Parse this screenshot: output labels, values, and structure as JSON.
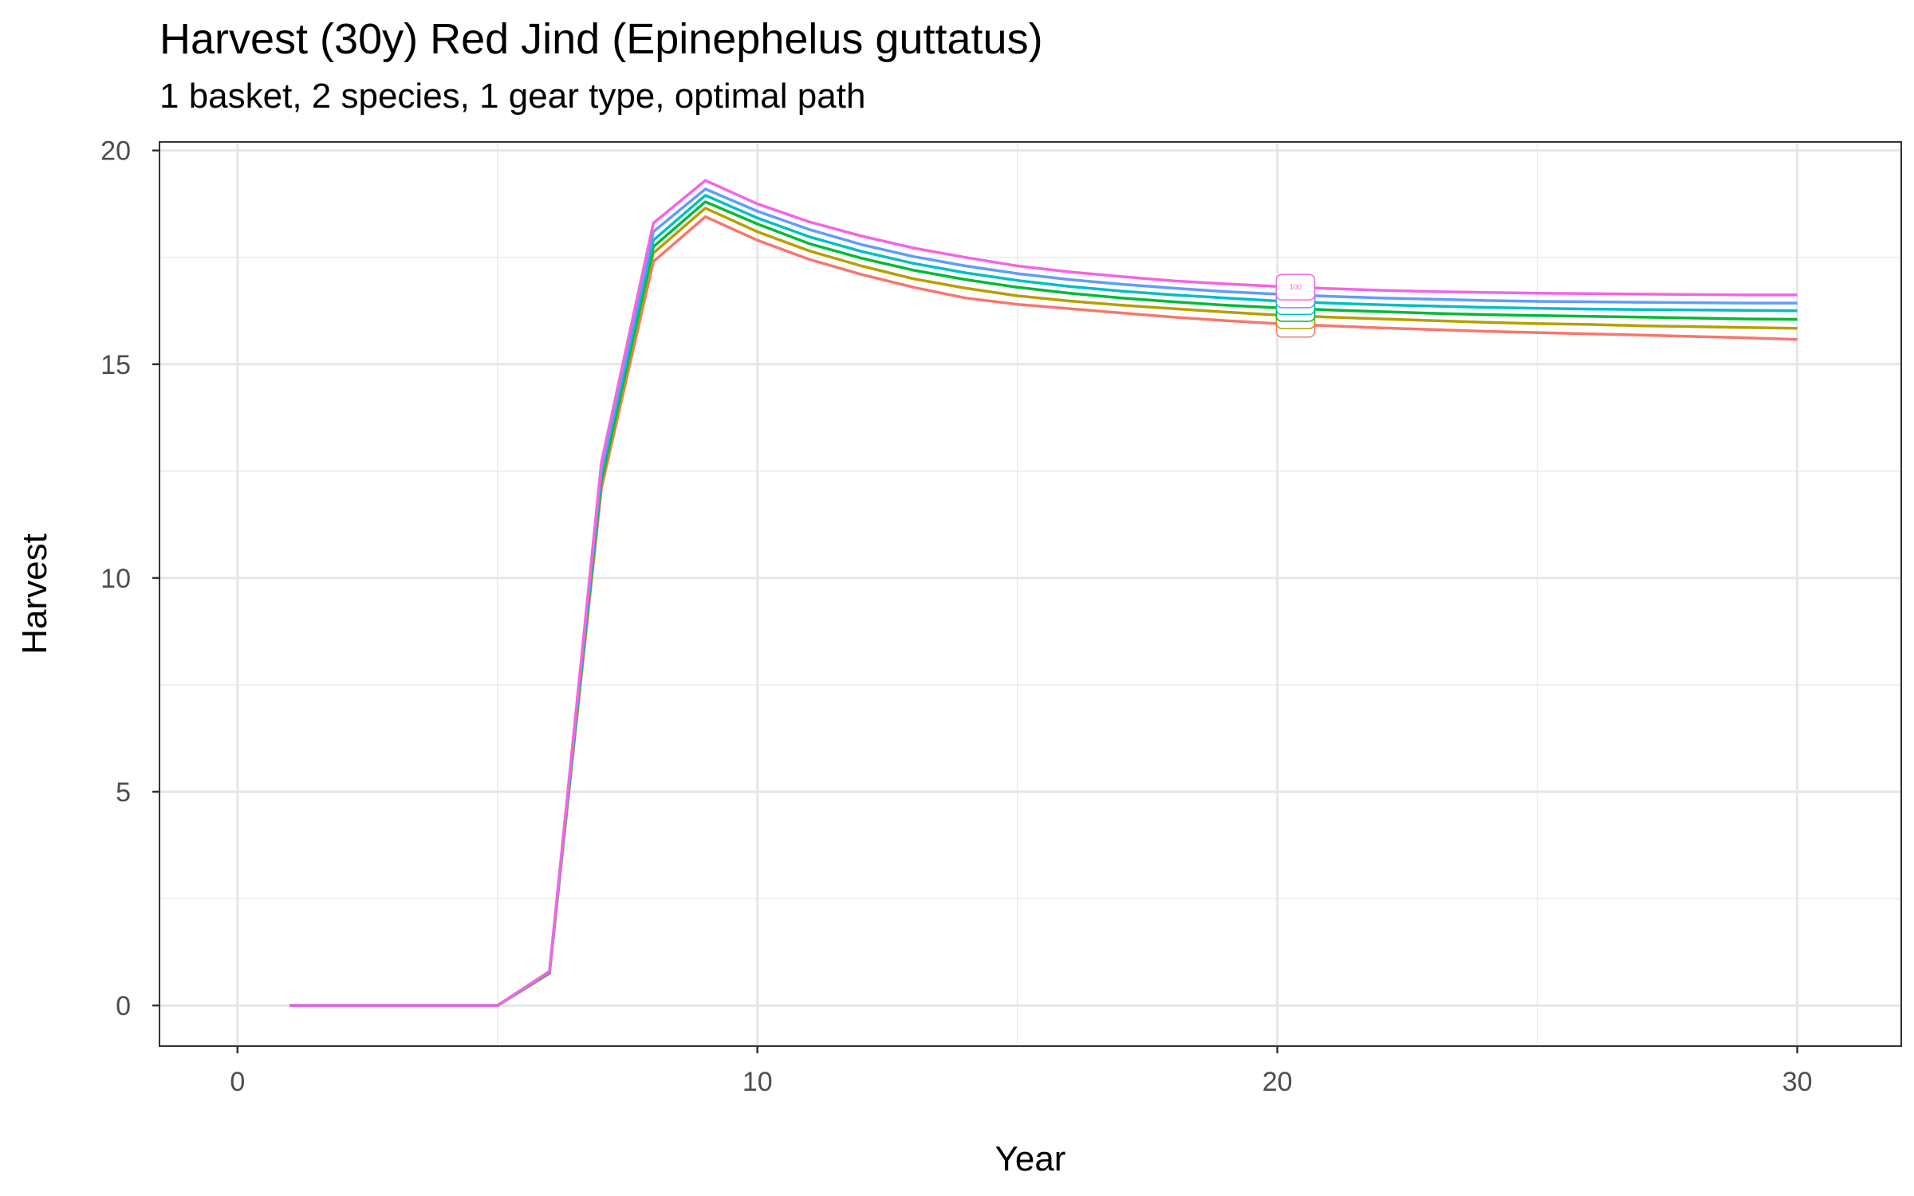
{
  "chart_data": {
    "type": "line",
    "title": "Harvest (30y) Red Jind (Epinephelus guttatus)",
    "subtitle": "1 basket, 2 species, 1 gear type, optimal path",
    "xlabel": "Year",
    "ylabel": "Harvest",
    "xlim": [
      -1.5,
      32
    ],
    "ylim": [
      -0.95,
      20.2
    ],
    "xticks": [
      0,
      10,
      20,
      30
    ],
    "yticks": [
      0,
      5,
      10,
      15,
      20
    ],
    "grid": true,
    "legend": "none",
    "x": [
      1,
      2,
      3,
      4,
      5,
      6,
      7,
      8,
      9,
      10,
      11,
      12,
      13,
      14,
      15,
      16,
      17,
      18,
      19,
      20,
      21,
      22,
      23,
      24,
      25,
      26,
      27,
      28,
      29,
      30
    ],
    "end_label": {
      "x": 20.35,
      "text": "100"
    },
    "series": [
      {
        "color": "#F8766D",
        "values": [
          0,
          0,
          0,
          0,
          0,
          0.75,
          12.1,
          17.4,
          18.45,
          17.9,
          17.45,
          17.1,
          16.8,
          16.55,
          16.4,
          16.3,
          16.2,
          16.1,
          16.02,
          15.95,
          15.9,
          15.85,
          15.81,
          15.77,
          15.74,
          15.71,
          15.68,
          15.65,
          15.62,
          15.58
        ]
      },
      {
        "color": "#B79F00",
        "values": [
          0,
          0,
          0,
          0,
          0,
          0.76,
          12.2,
          17.6,
          18.65,
          18.1,
          17.65,
          17.3,
          17.0,
          16.78,
          16.6,
          16.48,
          16.38,
          16.3,
          16.22,
          16.15,
          16.1,
          16.06,
          16.02,
          15.98,
          15.95,
          15.93,
          15.9,
          15.88,
          15.86,
          15.84
        ]
      },
      {
        "color": "#00BA38",
        "values": [
          0,
          0,
          0,
          0,
          0,
          0.77,
          12.3,
          17.75,
          18.8,
          18.28,
          17.82,
          17.48,
          17.2,
          16.98,
          16.8,
          16.66,
          16.55,
          16.46,
          16.38,
          16.32,
          16.27,
          16.23,
          16.19,
          16.16,
          16.14,
          16.12,
          16.1,
          16.08,
          16.06,
          16.05
        ]
      },
      {
        "color": "#00BFC4",
        "values": [
          0,
          0,
          0,
          0,
          0,
          0.78,
          12.45,
          17.9,
          18.95,
          18.42,
          17.98,
          17.64,
          17.36,
          17.14,
          16.96,
          16.82,
          16.71,
          16.62,
          16.55,
          16.48,
          16.43,
          16.39,
          16.36,
          16.33,
          16.31,
          16.29,
          16.28,
          16.27,
          16.26,
          16.25
        ]
      },
      {
        "color": "#619CFF",
        "values": [
          0,
          0,
          0,
          0,
          0,
          0.79,
          12.55,
          18.1,
          19.1,
          18.58,
          18.15,
          17.8,
          17.52,
          17.3,
          17.12,
          16.98,
          16.87,
          16.78,
          16.7,
          16.64,
          16.59,
          16.55,
          16.52,
          16.49,
          16.47,
          16.46,
          16.45,
          16.44,
          16.43,
          16.43
        ]
      },
      {
        "color": "#F564E3",
        "values": [
          0,
          0,
          0,
          0,
          0,
          0.8,
          12.7,
          18.3,
          19.3,
          18.75,
          18.33,
          18.0,
          17.72,
          17.5,
          17.3,
          17.16,
          17.05,
          16.95,
          16.88,
          16.82,
          16.77,
          16.73,
          16.7,
          16.68,
          16.66,
          16.65,
          16.64,
          16.63,
          16.62,
          16.62
        ]
      }
    ]
  }
}
